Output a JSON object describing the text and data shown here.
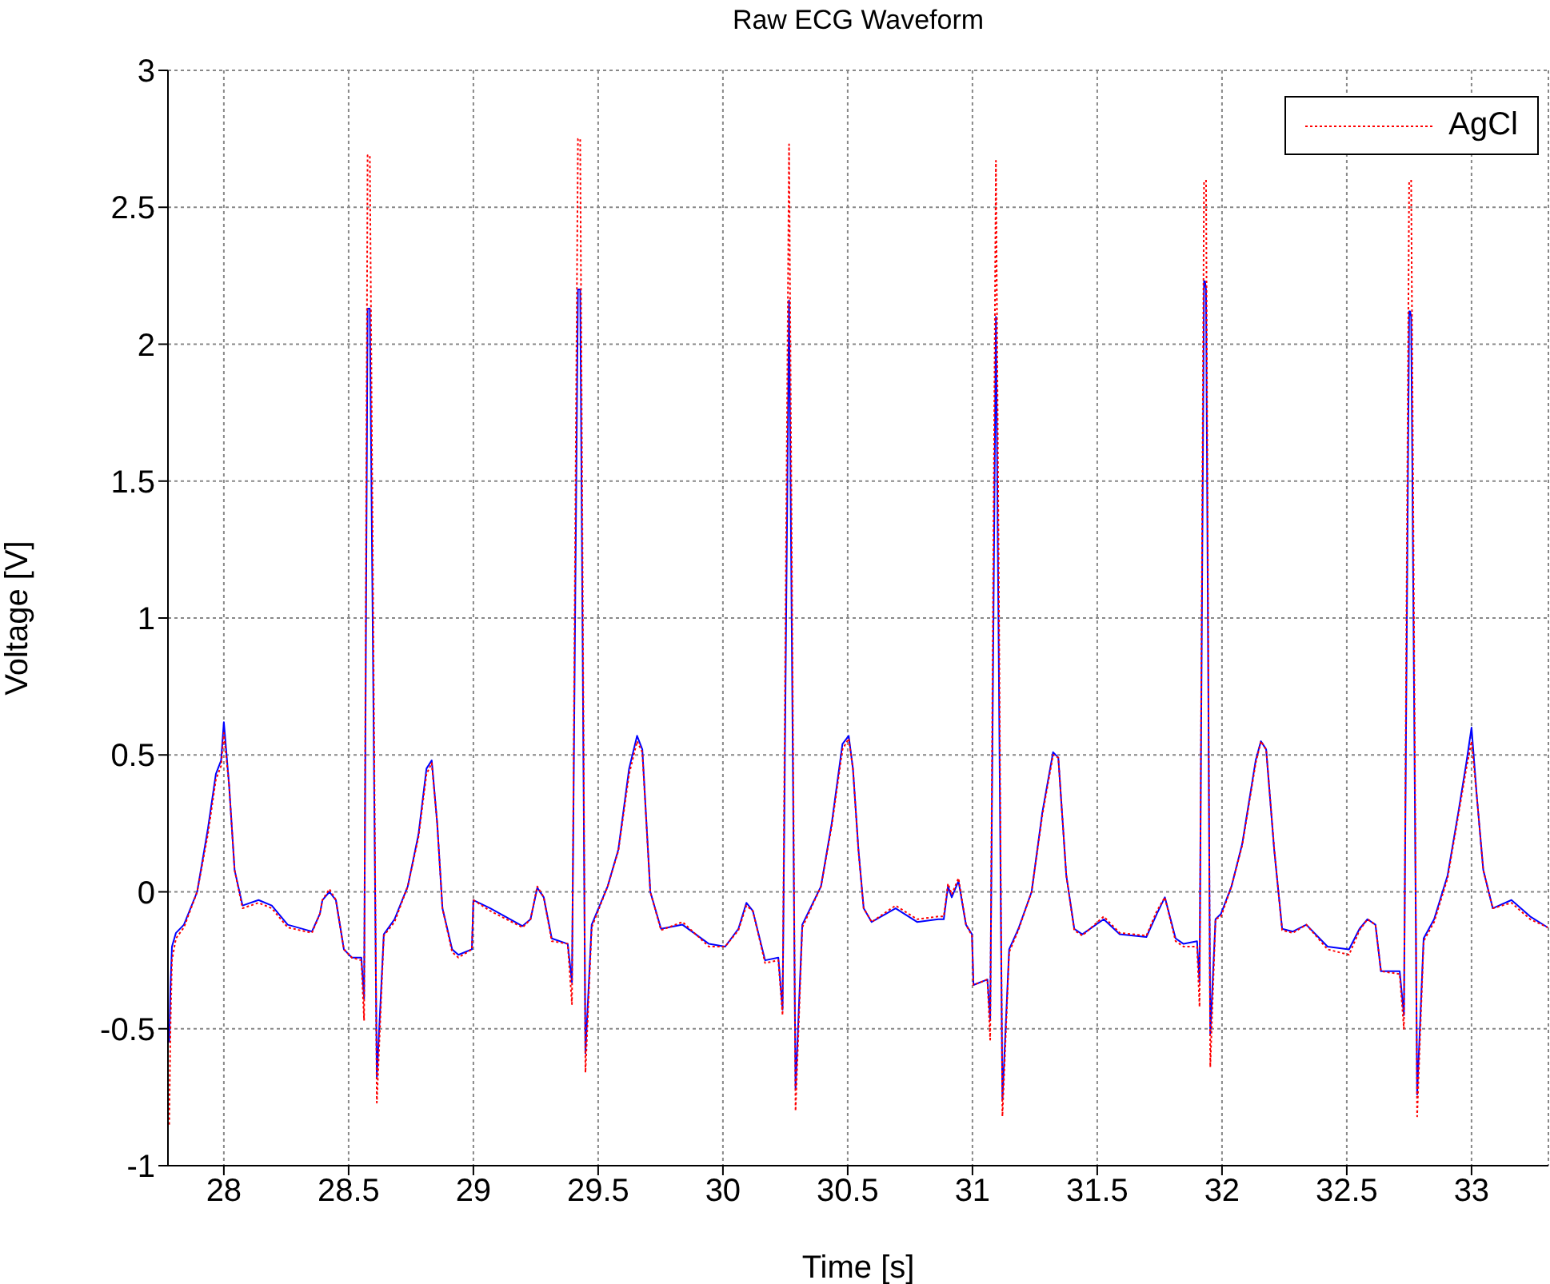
{
  "chart_data": {
    "type": "line",
    "title": "Raw ECG Waveform",
    "xlabel": "Time [s]",
    "ylabel": "Voltage [V]",
    "xlim": [
      27.776,
      33.308
    ],
    "xticks": [
      28,
      28.5,
      29,
      29.5,
      30,
      30.5,
      31,
      31.5,
      32,
      32.5,
      33
    ],
    "ylim": [
      -1,
      3
    ],
    "yticks": [
      -1,
      -0.5,
      0,
      0.5,
      1,
      1.5,
      2,
      2.5,
      3
    ],
    "grid": true,
    "legend": "top right",
    "marker": "none",
    "x": [
      27.781,
      27.786,
      27.792,
      27.808,
      27.84,
      27.893,
      27.936,
      27.968,
      27.989,
      28.0,
      28.021,
      28.043,
      28.075,
      28.139,
      28.192,
      28.256,
      28.353,
      28.385,
      28.395,
      28.423,
      28.449,
      28.481,
      28.513,
      28.551,
      28.562,
      28.576,
      28.585,
      28.613,
      28.641,
      28.684,
      28.737,
      28.78,
      28.812,
      28.833,
      28.855,
      28.876,
      28.915,
      28.94,
      28.994,
      29.0,
      29.068,
      29.197,
      29.229,
      29.256,
      29.282,
      29.314,
      29.378,
      29.395,
      29.419,
      29.428,
      29.449,
      29.474,
      29.538,
      29.581,
      29.624,
      29.656,
      29.677,
      29.709,
      29.752,
      29.838,
      29.944,
      30.009,
      30.062,
      30.094,
      30.12,
      30.169,
      30.222,
      30.239,
      30.265,
      30.291,
      30.318,
      30.393,
      30.436,
      30.479,
      30.504,
      30.521,
      30.543,
      30.564,
      30.596,
      30.692,
      30.778,
      30.863,
      30.885,
      30.902,
      30.917,
      30.944,
      30.974,
      30.998,
      31.004,
      31.06,
      31.071,
      31.094,
      31.12,
      31.147,
      31.184,
      31.237,
      31.28,
      31.323,
      31.344,
      31.376,
      31.408,
      31.44,
      31.526,
      31.59,
      31.697,
      31.739,
      31.771,
      31.814,
      31.846,
      31.9,
      31.91,
      31.928,
      31.932,
      31.936,
      31.953,
      31.974,
      31.996,
      32.038,
      32.081,
      32.135,
      32.156,
      32.177,
      32.209,
      32.241,
      32.284,
      32.338,
      32.423,
      32.509,
      32.551,
      32.583,
      32.615,
      32.637,
      32.712,
      32.729,
      32.75,
      32.754,
      32.758,
      32.782,
      32.808,
      32.85,
      32.904,
      32.947,
      32.979,
      33.0,
      33.021,
      33.047,
      33.085,
      33.16,
      33.235,
      33.305
    ],
    "series": [
      {
        "color": "#0000ff",
        "line_style": "solid",
        "values": [
          -0.55,
          -0.35,
          -0.2,
          -0.15,
          -0.12,
          0,
          0.23,
          0.43,
          0.48,
          0.62,
          0.39,
          0.08,
          -0.05,
          -0.03,
          -0.05,
          -0.12,
          -0.145,
          -0.08,
          -0.03,
          0,
          -0.03,
          -0.21,
          -0.24,
          -0.24,
          -0.39,
          2.13,
          2.13,
          -0.68,
          -0.155,
          -0.1,
          0.02,
          0.21,
          0.45,
          0.48,
          0.25,
          -0.06,
          -0.21,
          -0.23,
          -0.21,
          -0.03,
          -0.06,
          -0.125,
          -0.1,
          0.015,
          -0.02,
          -0.17,
          -0.19,
          -0.33,
          2.2,
          2.2,
          -0.59,
          -0.12,
          0.02,
          0.155,
          0.45,
          0.57,
          0.52,
          0,
          -0.135,
          -0.12,
          -0.19,
          -0.2,
          -0.135,
          -0.04,
          -0.07,
          -0.25,
          -0.24,
          -0.43,
          2.16,
          -0.72,
          -0.12,
          0.02,
          0.25,
          0.54,
          0.57,
          0.45,
          0.155,
          -0.06,
          -0.11,
          -0.06,
          -0.11,
          -0.1,
          -0.1,
          0.02,
          -0.02,
          0.04,
          -0.12,
          -0.155,
          -0.34,
          -0.32,
          -0.47,
          2.1,
          -0.76,
          -0.21,
          -0.135,
          0,
          0.29,
          0.51,
          0.49,
          0.06,
          -0.135,
          -0.155,
          -0.1,
          -0.155,
          -0.165,
          -0.08,
          -0.02,
          -0.17,
          -0.19,
          -0.18,
          -0.33,
          2.23,
          2.23,
          2.2,
          -0.52,
          -0.1,
          -0.08,
          0.02,
          0.175,
          0.48,
          0.55,
          0.52,
          0.155,
          -0.135,
          -0.145,
          -0.12,
          -0.2,
          -0.21,
          -0.135,
          -0.1,
          -0.12,
          -0.29,
          -0.29,
          -0.45,
          2.12,
          2.12,
          2.1,
          -0.74,
          -0.17,
          -0.1,
          0.06,
          0.29,
          0.47,
          0.6,
          0.35,
          0.08,
          -0.06,
          -0.03,
          -0.09,
          -0.13
        ]
      },
      {
        "name": "AgCl",
        "color": "#ff0000",
        "line_style": "dotted",
        "values": [
          -0.85,
          -0.5,
          -0.25,
          -0.17,
          -0.13,
          0,
          0.21,
          0.41,
          0.46,
          0.58,
          0.39,
          0.08,
          -0.06,
          -0.04,
          -0.06,
          -0.13,
          -0.15,
          -0.08,
          -0.03,
          0.01,
          -0.03,
          -0.21,
          -0.24,
          -0.25,
          -0.47,
          2.69,
          2.69,
          -0.77,
          -0.16,
          -0.11,
          0.02,
          0.2,
          0.43,
          0.47,
          0.25,
          -0.06,
          -0.22,
          -0.24,
          -0.21,
          -0.03,
          -0.07,
          -0.13,
          -0.1,
          0.02,
          -0.02,
          -0.18,
          -0.19,
          -0.41,
          2.75,
          2.75,
          -0.66,
          -0.13,
          0.02,
          0.15,
          0.43,
          0.55,
          0.51,
          0,
          -0.14,
          -0.11,
          -0.2,
          -0.2,
          -0.14,
          -0.05,
          -0.07,
          -0.26,
          -0.25,
          -0.45,
          2.73,
          -0.8,
          -0.13,
          0.02,
          0.24,
          0.52,
          0.56,
          0.45,
          0.15,
          -0.06,
          -0.11,
          -0.05,
          -0.1,
          -0.09,
          -0.09,
          0.03,
          -0.01,
          0.05,
          -0.12,
          -0.16,
          -0.34,
          -0.32,
          -0.54,
          2.67,
          -0.82,
          -0.22,
          -0.14,
          0,
          0.28,
          0.5,
          0.49,
          0.06,
          -0.14,
          -0.16,
          -0.09,
          -0.15,
          -0.16,
          -0.07,
          -0.02,
          -0.18,
          -0.2,
          -0.2,
          -0.42,
          2.6,
          null,
          2.6,
          -0.64,
          -0.1,
          -0.09,
          0.02,
          0.17,
          0.47,
          0.55,
          0.52,
          0.16,
          -0.14,
          -0.15,
          -0.12,
          -0.21,
          -0.23,
          -0.14,
          -0.1,
          -0.12,
          -0.29,
          -0.3,
          -0.5,
          2.6,
          null,
          2.6,
          -0.82,
          -0.18,
          -0.11,
          0.05,
          0.28,
          0.45,
          0.55,
          0.35,
          0.08,
          -0.06,
          -0.04,
          -0.1,
          -0.13
        ]
      }
    ]
  }
}
